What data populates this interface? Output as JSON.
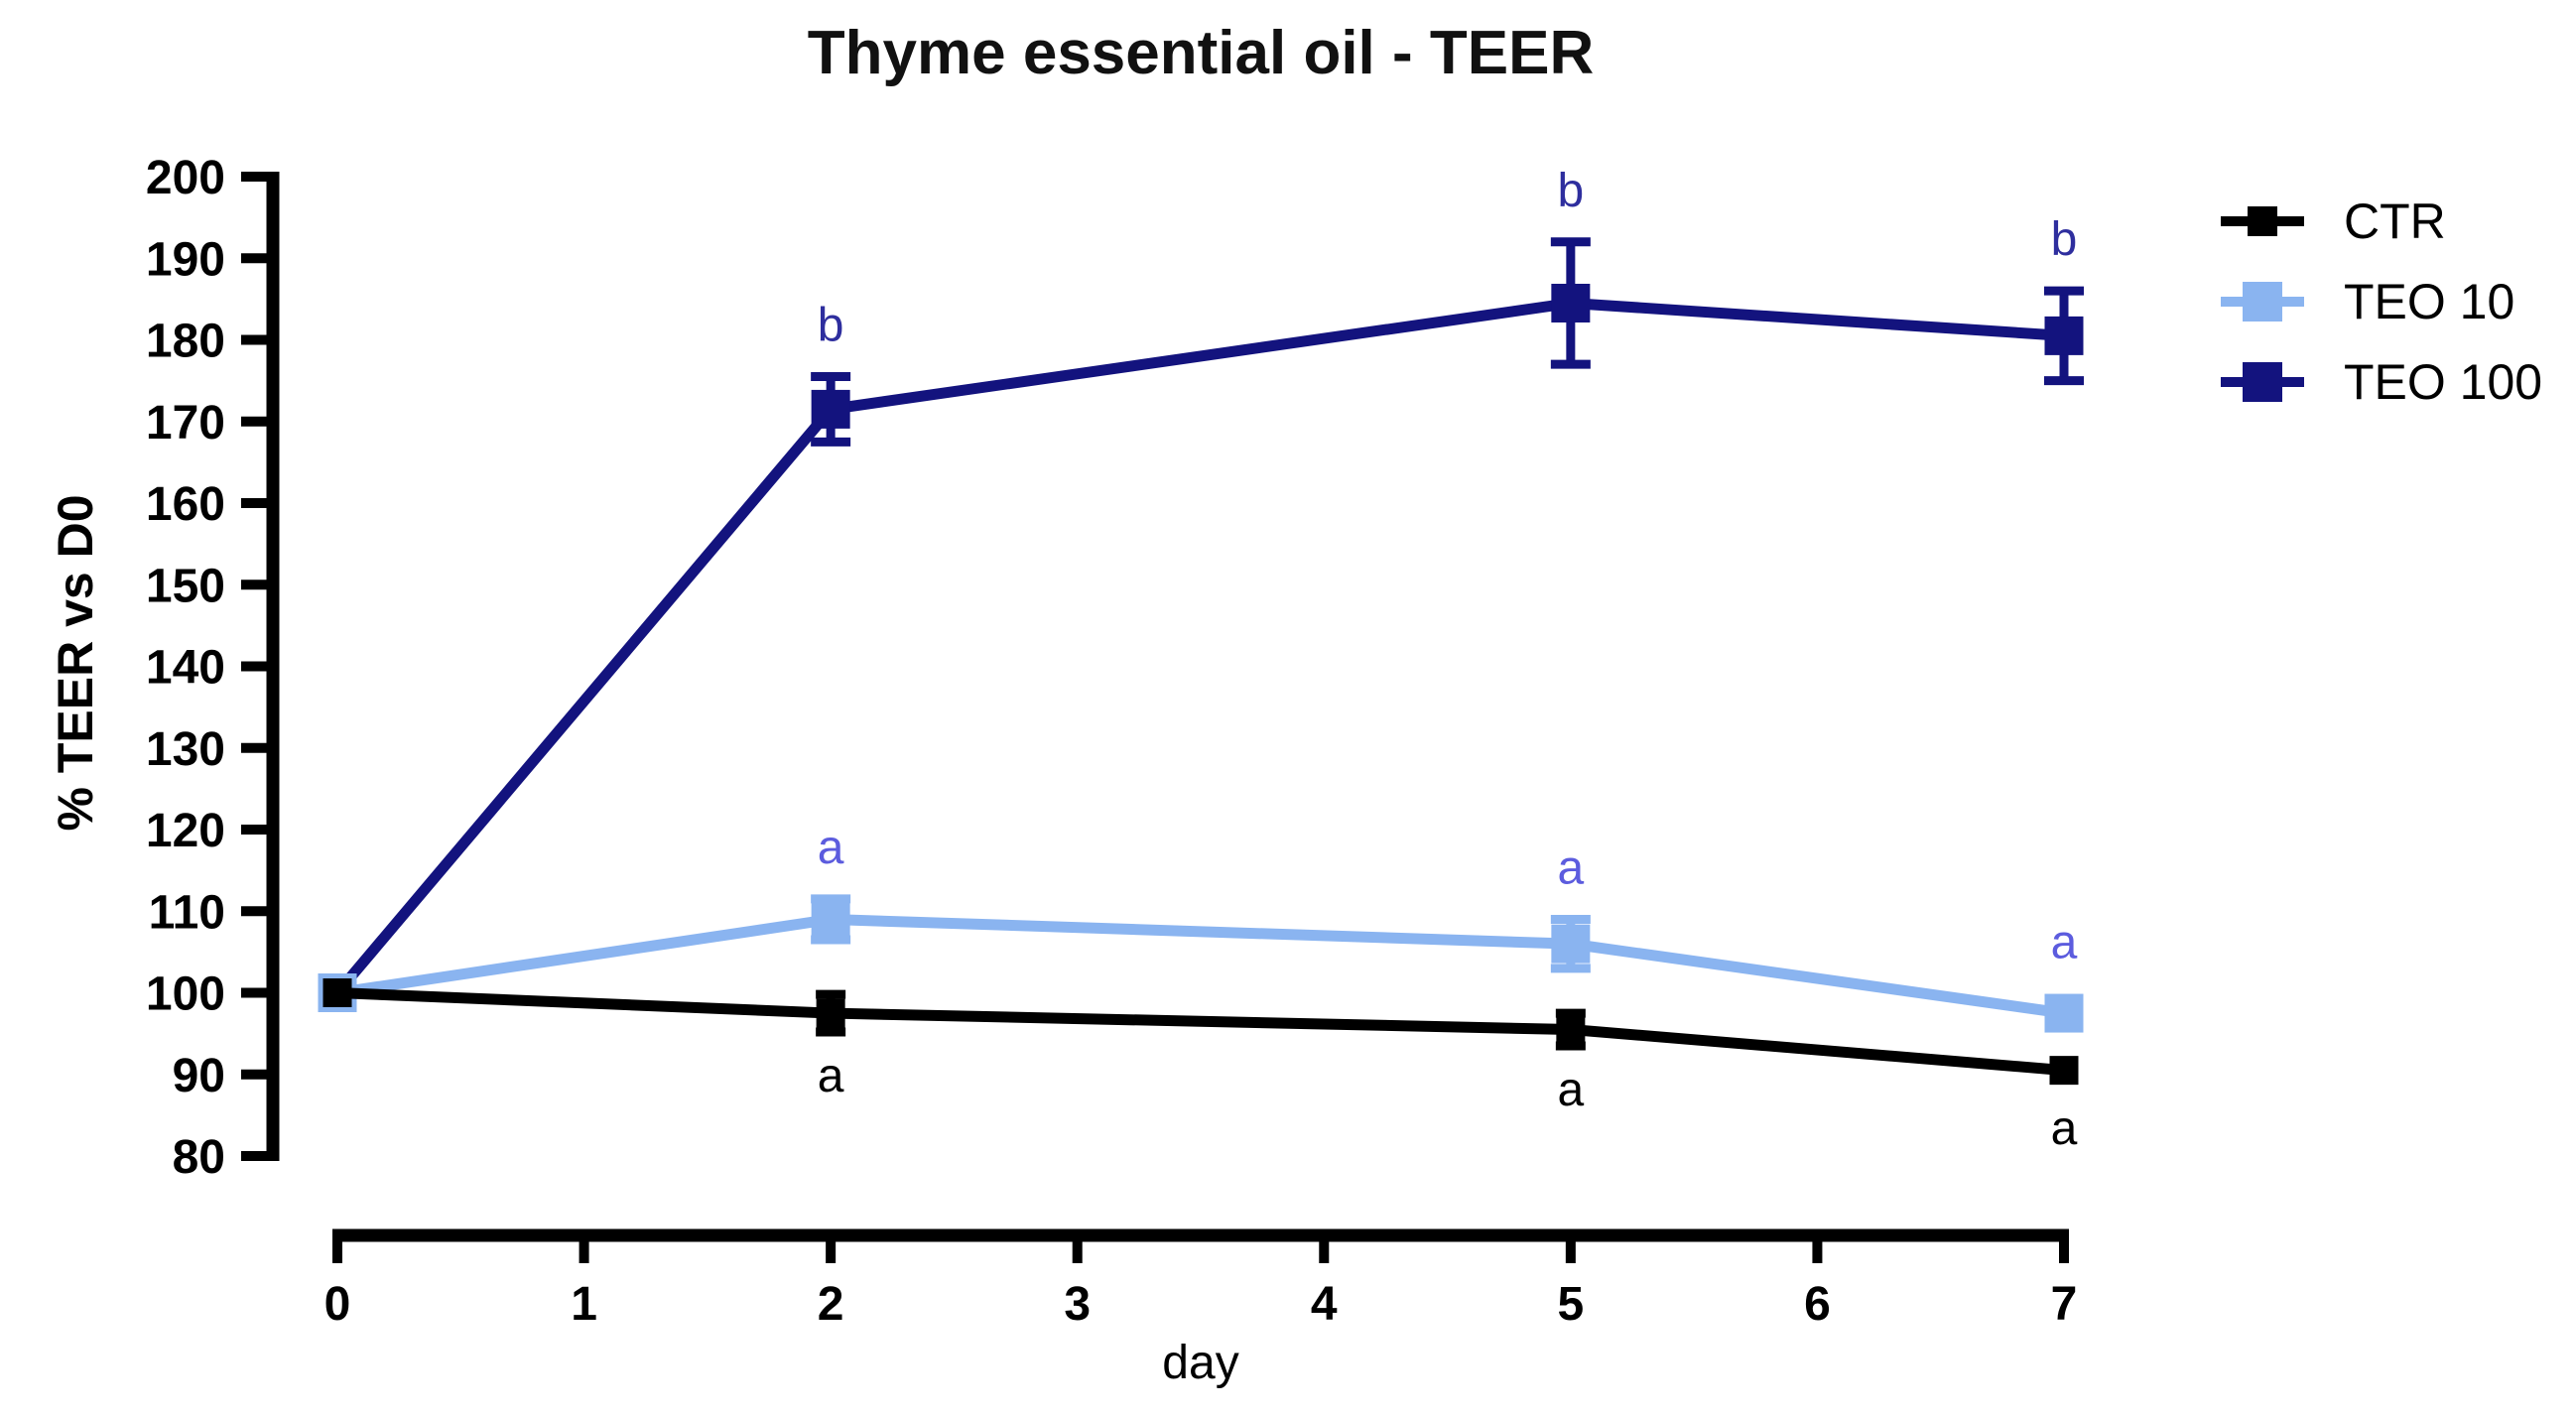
{
  "page": {
    "background": "#ffffff"
  },
  "chart_data": {
    "type": "line",
    "title": "Thyme essential oil - TEER",
    "xlabel": "day",
    "ylabel": "% TEER vs D0",
    "xlim": [
      0,
      7
    ],
    "ylim": [
      80,
      200
    ],
    "xticks": [
      0,
      1,
      2,
      3,
      4,
      5,
      6,
      7
    ],
    "yticks": [
      80,
      90,
      100,
      110,
      120,
      130,
      140,
      150,
      160,
      170,
      180,
      190,
      200
    ],
    "x": [
      0,
      2,
      5,
      7
    ],
    "grid": false,
    "legend": {
      "position": "right",
      "entries": [
        "CTR",
        "TEO 10",
        "TEO 100"
      ]
    },
    "series": [
      {
        "name": "CTR",
        "color": "#000000",
        "values": [
          100,
          97.5,
          95.5,
          90.5
        ],
        "errors": [
          0,
          2.3,
          2,
          0
        ]
      },
      {
        "name": "TEO 10",
        "color": "#8AB4F0",
        "values": [
          100,
          109,
          106,
          97.5
        ],
        "errors": [
          0,
          2.5,
          3,
          0
        ]
      },
      {
        "name": "TEO 100",
        "color": "#13137E",
        "values": [
          100,
          171.5,
          184.5,
          180.5
        ],
        "errors": [
          0,
          4,
          7.5,
          5.5
        ]
      }
    ],
    "annotations": [
      {
        "series": "TEO 100",
        "day": 2,
        "text": "b",
        "color": "#2E2E9E",
        "position": "above"
      },
      {
        "series": "TEO 100",
        "day": 5,
        "text": "b",
        "color": "#2E2E9E",
        "position": "above"
      },
      {
        "series": "TEO 100",
        "day": 7,
        "text": "b",
        "color": "#2E2E9E",
        "position": "above"
      },
      {
        "series": "TEO 10",
        "day": 2,
        "text": "a",
        "color": "#5C5CDE",
        "position": "above"
      },
      {
        "series": "TEO 10",
        "day": 5,
        "text": "a",
        "color": "#5C5CDE",
        "position": "above"
      },
      {
        "series": "TEO 10",
        "day": 7,
        "text": "a",
        "color": "#5C5CDE",
        "position": "above"
      },
      {
        "series": "CTR",
        "day": 2,
        "text": "a",
        "color": "#000000",
        "position": "below"
      },
      {
        "series": "CTR",
        "day": 5,
        "text": "a",
        "color": "#000000",
        "position": "below"
      },
      {
        "series": "CTR",
        "day": 7,
        "text": "a",
        "color": "#000000",
        "position": "below"
      }
    ]
  }
}
